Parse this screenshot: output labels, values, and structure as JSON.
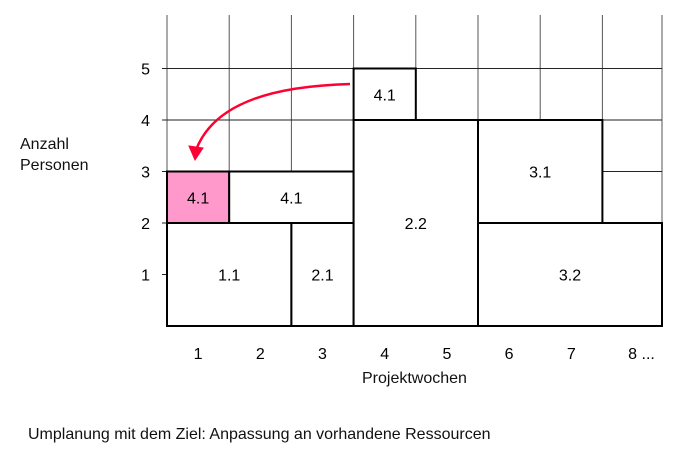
{
  "y_axis": {
    "label_line1": "Anzahl",
    "label_line2": "Personen",
    "ticks": [
      "1",
      "2",
      "3",
      "4",
      "5"
    ]
  },
  "x_axis": {
    "label": "Projektwochen",
    "ticks": [
      "1",
      "2",
      "3",
      "4",
      "5",
      "6",
      "7",
      "8 ..."
    ]
  },
  "grid": {
    "weeks": 8,
    "persons_max": 6
  },
  "blocks": [
    {
      "label": "1.1",
      "week_start": 0,
      "week_end": 2,
      "persons_from": 0,
      "persons_to": 2,
      "color": "#ffffff"
    },
    {
      "label": "2.1",
      "week_start": 2,
      "week_end": 3,
      "persons_from": 0,
      "persons_to": 2,
      "color": "#ffffff"
    },
    {
      "label": "4.1",
      "week_start": 0,
      "week_end": 1,
      "persons_from": 2,
      "persons_to": 3,
      "color": "#ff99cc"
    },
    {
      "label": "4.1",
      "week_start": 1,
      "week_end": 3,
      "persons_from": 2,
      "persons_to": 3,
      "color": "#ffffff"
    },
    {
      "label": "2.2",
      "week_start": 3,
      "week_end": 5,
      "persons_from": 0,
      "persons_to": 4,
      "color": "#ffffff"
    },
    {
      "label": "4.1",
      "week_start": 3,
      "week_end": 4,
      "persons_from": 4,
      "persons_to": 5,
      "color": "#ffffff"
    },
    {
      "label": "3.1",
      "week_start": 5,
      "week_end": 7,
      "persons_from": 2,
      "persons_to": 4,
      "color": "#ffffff"
    },
    {
      "label": "3.2",
      "week_start": 5,
      "week_end": 8,
      "persons_from": 0,
      "persons_to": 2,
      "color": "#ffffff"
    }
  ],
  "arrow": {
    "color": "#ff0033",
    "from_block": 5,
    "to_block": 2
  },
  "caption": "Umplanung mit dem Ziel: Anpassung an vorhandene Ressourcen"
}
